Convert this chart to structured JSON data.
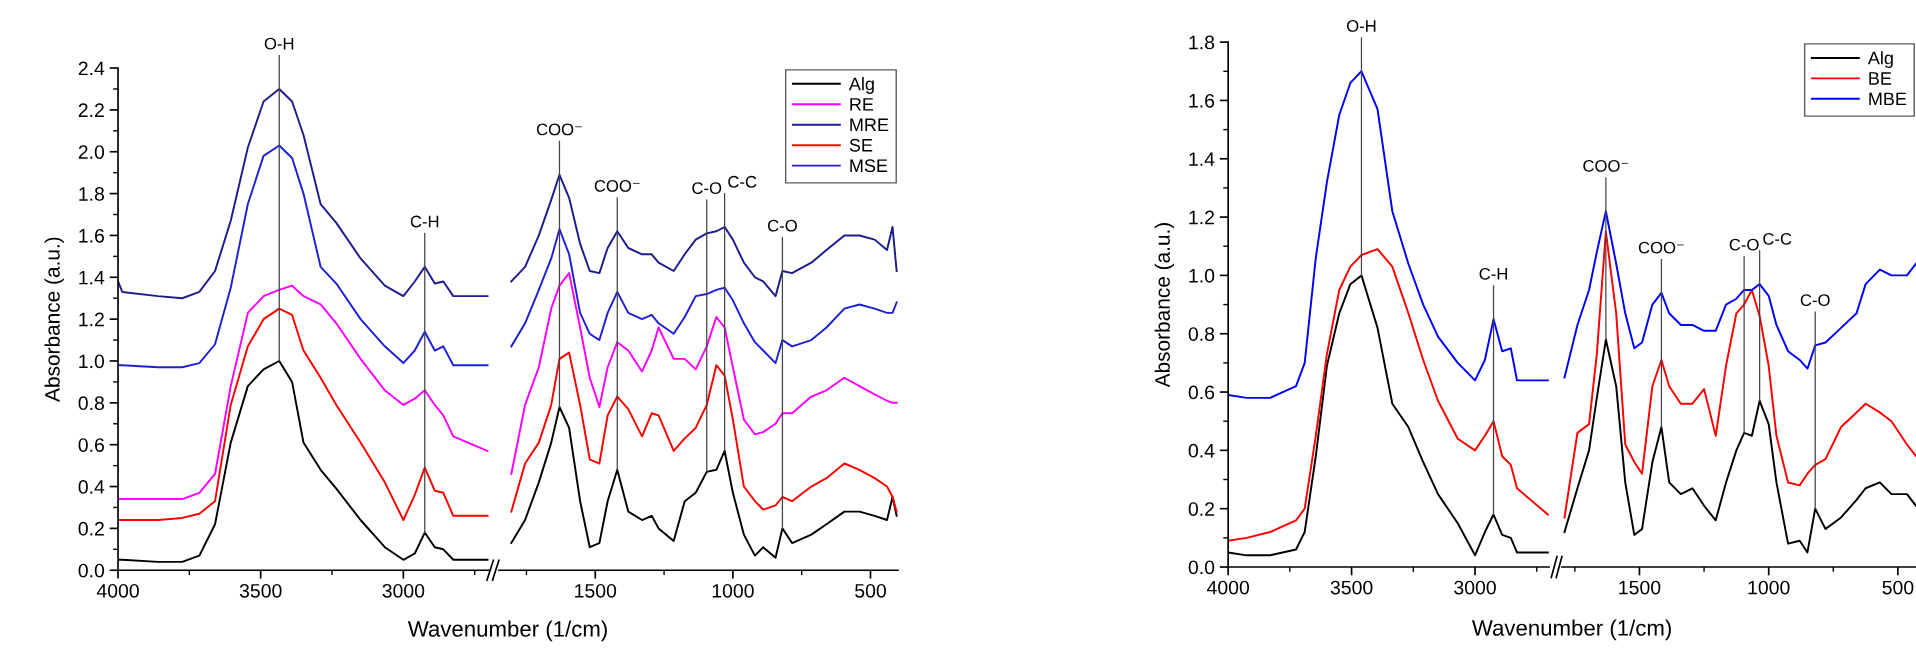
{
  "chart_data": [
    {
      "type": "line",
      "ylabel": "Absorbance (a.u.)",
      "xlabel": "Wavenumber (1/cm)",
      "x": [
        4000,
        3985,
        3860,
        3775,
        3715,
        3660,
        3605,
        3545,
        3490,
        3435,
        3390,
        3350,
        3290,
        3235,
        3150,
        3065,
        3000,
        2960,
        2925,
        2890,
        2860,
        2825,
        2705
      ],
      "xlim": [
        4000,
        2700
      ],
      "xticks": [
        4000,
        3500,
        3000
      ],
      "ylim": [
        0,
        2.4
      ],
      "yticks": [
        {
          "value": 0,
          "label": "0.0"
        },
        {
          "value": 0.2,
          "label": "0.2"
        },
        {
          "value": 0.4,
          "label": "0.4"
        },
        {
          "value": 0.6,
          "label": "0.6"
        },
        {
          "value": 0.8,
          "label": "0.8"
        },
        {
          "value": 1,
          "label": "1.0"
        },
        {
          "value": 1.2,
          "label": "1.2"
        },
        {
          "value": 1.4,
          "label": "1.4"
        },
        {
          "value": 1.6,
          "label": "1.6"
        },
        {
          "value": 1.8,
          "label": "1.8"
        },
        {
          "value": 2,
          "label": "2.0"
        },
        {
          "value": 2.2,
          "label": "2.2"
        },
        {
          "value": 2.4,
          "label": "2.4"
        }
      ],
      "series": [
        {
          "color": "#000000",
          "values": [
            0.05,
            0.05,
            0.04,
            0.04,
            0.07,
            0.22,
            0.61,
            0.88,
            0.96,
            1.0,
            0.9,
            0.61,
            0.48,
            0.39,
            0.24,
            0.11,
            0.05,
            0.08,
            0.18,
            0.11,
            0.1,
            0.05,
            0.05
          ]
        },
        {
          "color": "#ff00ff",
          "values": [
            0.34,
            0.34,
            0.34,
            0.34,
            0.37,
            0.46,
            0.88,
            1.23,
            1.31,
            1.34,
            1.36,
            1.31,
            1.27,
            1.18,
            1.01,
            0.86,
            0.79,
            0.82,
            0.86,
            0.79,
            0.74,
            0.64,
            0.57
          ]
        },
        {
          "color": "#1c1c8a",
          "values": [
            1.38,
            1.33,
            1.31,
            1.3,
            1.33,
            1.43,
            1.67,
            2.02,
            2.24,
            2.3,
            2.24,
            2.08,
            1.75,
            1.66,
            1.49,
            1.36,
            1.31,
            1.38,
            1.45,
            1.37,
            1.38,
            1.31,
            1.31
          ]
        },
        {
          "color": "#ff0000",
          "values": [
            0.24,
            0.24,
            0.24,
            0.25,
            0.27,
            0.33,
            0.79,
            1.07,
            1.2,
            1.25,
            1.22,
            1.05,
            0.92,
            0.79,
            0.61,
            0.42,
            0.24,
            0.36,
            0.49,
            0.38,
            0.37,
            0.26,
            0.26
          ]
        },
        {
          "color": "#1f1fd6",
          "values": [
            0.98,
            0.98,
            0.97,
            0.97,
            0.99,
            1.08,
            1.35,
            1.75,
            1.98,
            2.03,
            1.97,
            1.8,
            1.45,
            1.37,
            1.2,
            1.07,
            0.99,
            1.05,
            1.14,
            1.05,
            1.07,
            0.98,
            0.98
          ]
        }
      ],
      "annotations": [
        {
          "text": "O-H",
          "x": 3435,
          "y": 2.3
        },
        {
          "text": "C-H",
          "x": 2925,
          "y": 1.45
        }
      ]
    },
    {
      "type": "line",
      "tick_labels": "x",
      "legend": "top right",
      "x": [
        1805,
        1755,
        1705,
        1660,
        1630,
        1595,
        1555,
        1520,
        1485,
        1455,
        1420,
        1380,
        1330,
        1295,
        1270,
        1215,
        1175,
        1135,
        1095,
        1060,
        1030,
        1000,
        960,
        920,
        890,
        845,
        820,
        785,
        715,
        660,
        595,
        540,
        485,
        440,
        420,
        405
      ],
      "xlim": [
        1850,
        400
      ],
      "xticks": [
        1500,
        1000,
        500
      ],
      "ylim": [
        0,
        2.4
      ],
      "series": [
        {
          "name": "Alg",
          "color": "#000000",
          "values": [
            0.13,
            0.24,
            0.42,
            0.61,
            0.78,
            0.68,
            0.33,
            0.11,
            0.13,
            0.33,
            0.48,
            0.28,
            0.24,
            0.26,
            0.2,
            0.14,
            0.33,
            0.37,
            0.47,
            0.48,
            0.57,
            0.37,
            0.17,
            0.07,
            0.11,
            0.06,
            0.2,
            0.13,
            0.17,
            0.22,
            0.28,
            0.28,
            0.26,
            0.24,
            0.35,
            0.26
          ]
        },
        {
          "name": "RE",
          "color": "#ff00ff",
          "values": [
            0.46,
            0.79,
            0.97,
            1.25,
            1.36,
            1.42,
            1.16,
            0.92,
            0.78,
            0.97,
            1.09,
            1.05,
            0.95,
            1.05,
            1.16,
            1.01,
            1.01,
            0.96,
            1.07,
            1.21,
            1.16,
            0.97,
            0.72,
            0.65,
            0.66,
            0.7,
            0.75,
            0.75,
            0.83,
            0.86,
            0.92,
            0.88,
            0.84,
            0.81,
            0.8,
            0.8
          ]
        },
        {
          "name": "MRE",
          "color": "#1c1c8a",
          "values": [
            1.38,
            1.45,
            1.6,
            1.77,
            1.89,
            1.78,
            1.56,
            1.43,
            1.42,
            1.54,
            1.62,
            1.54,
            1.51,
            1.51,
            1.47,
            1.43,
            1.51,
            1.58,
            1.61,
            1.62,
            1.64,
            1.58,
            1.47,
            1.4,
            1.38,
            1.31,
            1.43,
            1.42,
            1.47,
            1.53,
            1.6,
            1.6,
            1.58,
            1.53,
            1.64,
            1.43
          ]
        },
        {
          "name": "SE",
          "color": "#ff0000",
          "values": [
            0.28,
            0.51,
            0.61,
            0.79,
            1.01,
            1.04,
            0.79,
            0.53,
            0.51,
            0.74,
            0.83,
            0.77,
            0.64,
            0.75,
            0.74,
            0.57,
            0.63,
            0.68,
            0.79,
            0.98,
            0.93,
            0.72,
            0.4,
            0.33,
            0.29,
            0.31,
            0.35,
            0.33,
            0.4,
            0.44,
            0.51,
            0.48,
            0.44,
            0.4,
            0.35,
            0.28
          ]
        },
        {
          "name": "MSE",
          "color": "#1f1fd6",
          "values": [
            1.07,
            1.18,
            1.34,
            1.49,
            1.63,
            1.51,
            1.23,
            1.13,
            1.1,
            1.23,
            1.33,
            1.23,
            1.2,
            1.22,
            1.18,
            1.13,
            1.21,
            1.31,
            1.32,
            1.34,
            1.35,
            1.29,
            1.18,
            1.09,
            1.05,
            0.99,
            1.1,
            1.07,
            1.1,
            1.16,
            1.25,
            1.27,
            1.25,
            1.23,
            1.23,
            1.28
          ]
        }
      ],
      "annotations": [
        {
          "text": "COO⁻",
          "x": 1630,
          "y": 1.89
        },
        {
          "text": "COO⁻",
          "x": 1420,
          "y": 1.62
        },
        {
          "text": "C-O",
          "x": 1095,
          "y": 1.61
        },
        {
          "text": "C-C",
          "x": 1030,
          "y": 1.64
        },
        {
          "text": "C-O",
          "x": 820,
          "y": 1.43
        }
      ]
    },
    {
      "type": "line",
      "ylabel": "Absorbance (a.u.)",
      "xlabel": "Wavenumber (1/cm)",
      "x": [
        4000,
        3925,
        3830,
        3725,
        3690,
        3645,
        3600,
        3550,
        3505,
        3460,
        3395,
        3335,
        3270,
        3210,
        3150,
        3070,
        3000,
        2960,
        2925,
        2890,
        2855,
        2830,
        2705
      ],
      "xlim": [
        4000,
        2700
      ],
      "xticks": [
        4000,
        3500,
        3000
      ],
      "ylim": [
        0,
        1.8
      ],
      "yticks": [
        {
          "value": 0,
          "label": "0.0"
        },
        {
          "value": 0.2,
          "label": "0.2"
        },
        {
          "value": 0.4,
          "label": "0.4"
        },
        {
          "value": 0.6,
          "label": "0.6"
        },
        {
          "value": 0.8,
          "label": "0.8"
        },
        {
          "value": 1,
          "label": "1.0"
        },
        {
          "value": 1.2,
          "label": "1.2"
        },
        {
          "value": 1.4,
          "label": "1.4"
        },
        {
          "value": 1.6,
          "label": "1.6"
        },
        {
          "value": 1.8,
          "label": "1.8"
        }
      ],
      "series": [
        {
          "color": "#000000",
          "values": [
            0.05,
            0.04,
            0.04,
            0.06,
            0.12,
            0.38,
            0.69,
            0.87,
            0.97,
            1.0,
            0.82,
            0.56,
            0.48,
            0.36,
            0.25,
            0.15,
            0.04,
            0.12,
            0.18,
            0.11,
            0.1,
            0.05,
            0.05
          ]
        },
        {
          "color": "#ff0000",
          "values": [
            0.09,
            0.1,
            0.12,
            0.16,
            0.2,
            0.45,
            0.73,
            0.95,
            1.03,
            1.07,
            1.09,
            1.03,
            0.87,
            0.71,
            0.57,
            0.44,
            0.4,
            0.45,
            0.5,
            0.38,
            0.35,
            0.27,
            0.18
          ]
        },
        {
          "color": "#0000ff",
          "values": [
            0.59,
            0.58,
            0.58,
            0.62,
            0.7,
            1.06,
            1.32,
            1.55,
            1.66,
            1.7,
            1.57,
            1.22,
            1.04,
            0.9,
            0.79,
            0.7,
            0.64,
            0.71,
            0.85,
            0.74,
            0.75,
            0.64,
            0.64
          ]
        }
      ],
      "annotations": [
        {
          "text": "O-H",
          "x": 3460,
          "y": 1.7
        },
        {
          "text": "C-H",
          "x": 2925,
          "y": 0.85
        }
      ]
    },
    {
      "type": "line",
      "tick_labels": "x",
      "legend": "top right",
      "x": [
        1790,
        1740,
        1695,
        1665,
        1630,
        1590,
        1555,
        1520,
        1490,
        1450,
        1415,
        1385,
        1340,
        1295,
        1250,
        1205,
        1165,
        1125,
        1095,
        1065,
        1035,
        1000,
        970,
        925,
        880,
        850,
        820,
        780,
        720,
        660,
        625,
        570,
        525,
        465,
        430
      ],
      "xlim": [
        1800,
        430
      ],
      "xticks": [
        1500,
        1000,
        500
      ],
      "ylim": [
        0,
        1.8
      ],
      "series": [
        {
          "name": "Alg",
          "color": "#000000",
          "values": [
            0.12,
            0.27,
            0.4,
            0.58,
            0.78,
            0.62,
            0.29,
            0.11,
            0.13,
            0.36,
            0.48,
            0.29,
            0.25,
            0.27,
            0.21,
            0.16,
            0.29,
            0.4,
            0.46,
            0.45,
            0.57,
            0.49,
            0.29,
            0.08,
            0.09,
            0.05,
            0.2,
            0.13,
            0.17,
            0.23,
            0.27,
            0.29,
            0.25,
            0.25,
            0.21
          ]
        },
        {
          "name": "BE",
          "color": "#ff0000",
          "values": [
            0.17,
            0.46,
            0.49,
            0.73,
            1.15,
            0.87,
            0.42,
            0.36,
            0.32,
            0.62,
            0.71,
            0.62,
            0.56,
            0.56,
            0.61,
            0.45,
            0.69,
            0.87,
            0.9,
            0.95,
            0.86,
            0.69,
            0.45,
            0.29,
            0.28,
            0.32,
            0.35,
            0.37,
            0.48,
            0.53,
            0.56,
            0.53,
            0.5,
            0.42,
            0.38
          ]
        },
        {
          "name": "MBE",
          "color": "#0000ff",
          "values": [
            0.65,
            0.83,
            0.95,
            1.08,
            1.22,
            1.04,
            0.87,
            0.75,
            0.77,
            0.9,
            0.94,
            0.87,
            0.83,
            0.83,
            0.81,
            0.81,
            0.9,
            0.92,
            0.95,
            0.95,
            0.97,
            0.93,
            0.83,
            0.74,
            0.71,
            0.68,
            0.76,
            0.77,
            0.82,
            0.87,
            0.97,
            1.02,
            1.0,
            1.0,
            1.04
          ]
        }
      ],
      "annotations": [
        {
          "text": "COO⁻",
          "x": 1630,
          "y": 1.22
        },
        {
          "text": "COO⁻",
          "x": 1415,
          "y": 0.94
        },
        {
          "text": "C-O",
          "x": 1095,
          "y": 0.95
        },
        {
          "text": "C-C",
          "x": 1035,
          "y": 0.97
        },
        {
          "text": "C-O",
          "x": 820,
          "y": 0.76
        }
      ]
    }
  ]
}
